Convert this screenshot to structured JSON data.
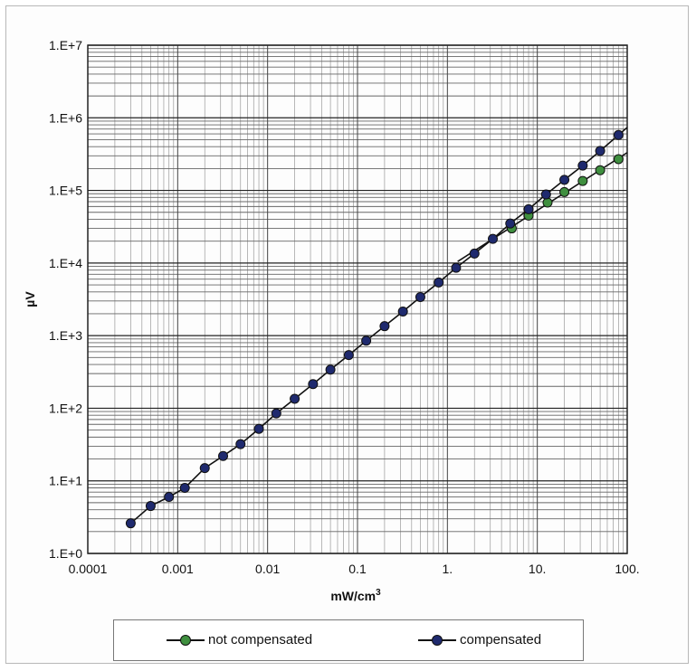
{
  "chart_data": {
    "type": "scatter",
    "title": "",
    "xlabel_main": "mW/cm",
    "xlabel_sup": "3",
    "ylabel": "µV",
    "x_scale": "log",
    "y_scale": "log",
    "xlim": [
      0.0001,
      100
    ],
    "ylim": [
      1,
      10000000
    ],
    "grid": true,
    "legend_position": "bottom",
    "x_tick_labels": [
      "0.0001",
      "0.001",
      "0.01",
      "0.1",
      "1.",
      "10.",
      "100."
    ],
    "y_tick_labels": [
      "1.E+0",
      "1.E+1",
      "1.E+2",
      "1.E+3",
      "1.E+4",
      "1.E+5",
      "1.E+6",
      "1.E+7"
    ],
    "series": [
      {
        "name": "not compensated",
        "color": "#3f8f3f",
        "x": [
          5.2,
          8,
          13,
          20,
          32,
          50,
          80
        ],
        "y": [
          30000,
          45000,
          68000,
          95000,
          135000,
          190000,
          270000
        ]
      },
      {
        "name": "compensated",
        "color": "#1f2a6e",
        "x": [
          0.0003,
          0.0005,
          0.0008,
          0.0012,
          0.002,
          0.0032,
          0.005,
          0.008,
          0.0125,
          0.02,
          0.032,
          0.05,
          0.08,
          0.125,
          0.2,
          0.32,
          0.5,
          0.8,
          1.25,
          2,
          3.2,
          5,
          8,
          12.5,
          20,
          32,
          50,
          80
        ],
        "y": [
          2.6,
          4.5,
          6,
          8,
          15,
          22,
          32,
          52,
          85,
          135,
          215,
          340,
          540,
          850,
          1350,
          2150,
          3400,
          5400,
          8600,
          13500,
          21500,
          35000,
          55000,
          88000,
          140000,
          220000,
          350000,
          580000
        ]
      }
    ]
  }
}
